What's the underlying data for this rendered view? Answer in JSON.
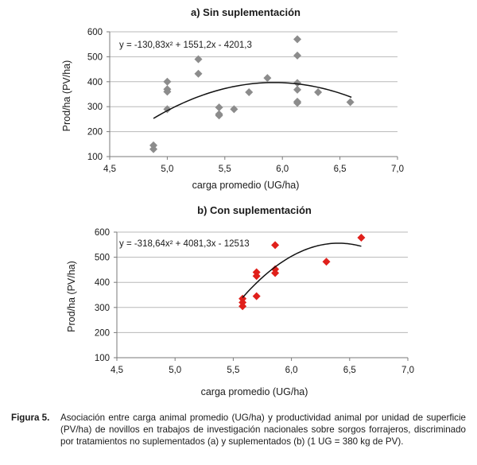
{
  "chart_data": [
    {
      "type": "scatter",
      "title": "a) Sin suplementación",
      "xlabel": "carga promedio (UG/ha)",
      "ylabel": "Prod/ha (PV/ha)",
      "xlim": [
        4.5,
        7.0
      ],
      "ylim": [
        100,
        600
      ],
      "xticks": [
        "4,5",
        "5,0",
        "5,5",
        "6,0",
        "6,5",
        "7,0"
      ],
      "yticks": [
        "100",
        "200",
        "300",
        "400",
        "500",
        "600"
      ],
      "grid": "horizontal",
      "marker": "diamond",
      "color": "#8c8c8c",
      "equation": "y = -130,83x² + 1551,2x - 4201,3",
      "trendline": {
        "a": -130.83,
        "b": 1551.2,
        "c": -4201.3,
        "x_range": [
          4.88,
          6.6
        ]
      },
      "points": [
        {
          "x": 4.88,
          "y": 145
        },
        {
          "x": 4.88,
          "y": 130
        },
        {
          "x": 5.0,
          "y": 400
        },
        {
          "x": 5.0,
          "y": 370
        },
        {
          "x": 5.0,
          "y": 360
        },
        {
          "x": 5.0,
          "y": 290
        },
        {
          "x": 5.27,
          "y": 490
        },
        {
          "x": 5.27,
          "y": 432
        },
        {
          "x": 5.45,
          "y": 297
        },
        {
          "x": 5.45,
          "y": 270
        },
        {
          "x": 5.45,
          "y": 265
        },
        {
          "x": 5.58,
          "y": 290
        },
        {
          "x": 5.71,
          "y": 358
        },
        {
          "x": 5.87,
          "y": 415
        },
        {
          "x": 6.13,
          "y": 570
        },
        {
          "x": 6.13,
          "y": 505
        },
        {
          "x": 6.13,
          "y": 395
        },
        {
          "x": 6.13,
          "y": 368
        },
        {
          "x": 6.13,
          "y": 320
        },
        {
          "x": 6.13,
          "y": 315
        },
        {
          "x": 6.31,
          "y": 358
        },
        {
          "x": 6.59,
          "y": 318
        }
      ]
    },
    {
      "type": "scatter",
      "title": "b) Con suplementación",
      "xlabel": "carga promedio (UG/ha)",
      "ylabel": "Prod/ha (PV/ha)",
      "xlim": [
        4.5,
        7.0
      ],
      "ylim": [
        100,
        600
      ],
      "xticks": [
        "4,5",
        "5,0",
        "5,5",
        "6,0",
        "6,5",
        "7,0"
      ],
      "yticks": [
        "100",
        "200",
        "300",
        "400",
        "500",
        "600"
      ],
      "grid": "horizontal",
      "marker": "diamond",
      "color": "#e0201b",
      "equation": "y = -318,64x² + 4081,3x - 12513",
      "trendline": {
        "a": -318.64,
        "b": 4081.3,
        "c": -12513,
        "x_range": [
          5.58,
          6.6
        ]
      },
      "points": [
        {
          "x": 5.58,
          "y": 335
        },
        {
          "x": 5.58,
          "y": 320
        },
        {
          "x": 5.58,
          "y": 305
        },
        {
          "x": 5.7,
          "y": 440
        },
        {
          "x": 5.7,
          "y": 425
        },
        {
          "x": 5.7,
          "y": 345
        },
        {
          "x": 5.86,
          "y": 548
        },
        {
          "x": 5.86,
          "y": 452
        },
        {
          "x": 5.86,
          "y": 437
        },
        {
          "x": 6.3,
          "y": 482
        },
        {
          "x": 6.6,
          "y": 578
        }
      ]
    }
  ],
  "caption": {
    "label": "Figura 5.",
    "text": "Asociación entre carga animal promedio (UG/ha) y productividad animal por unidad de superficie (PV/ha) de novillos en trabajos de investigación nacionales sobre sorgos forrajeros, discriminado por tratamientos no suplementados (a) y suplementados (b) (1 UG = 380 kg de PV)."
  }
}
